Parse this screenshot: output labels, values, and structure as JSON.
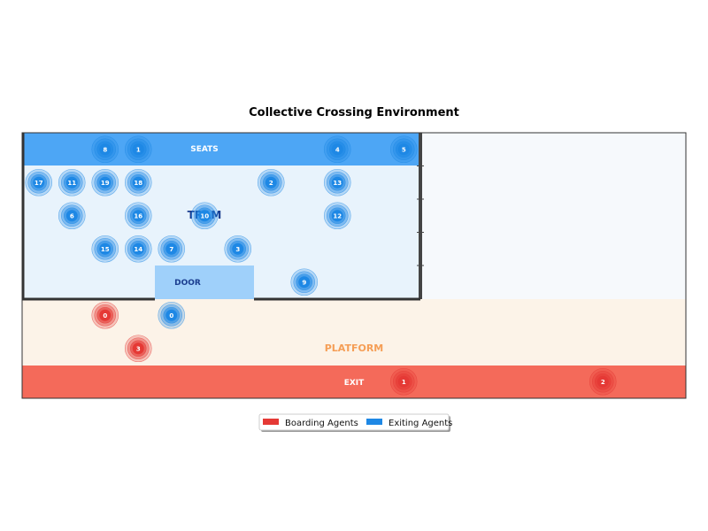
{
  "title": "Collective Crossing Environment",
  "zones": {
    "seats_label": "SEATS",
    "tram_label": "TRAM",
    "door_label": "DOOR",
    "platform_label": "PLATFORM",
    "exit_label": "EXIT"
  },
  "legend": {
    "boarding_label": "Boarding Agents",
    "exiting_label": "Exiting Agents"
  },
  "colors": {
    "seats": "#4da6f5",
    "tram": "#e8f3fc",
    "door": "#9fd0fa",
    "platform": "#fcf3e8",
    "exit": "#f46a5a",
    "outside": "#f6f9fc",
    "boarding": "#e53935",
    "exiting": "#1e88e5",
    "tram_text": "#1a3d8f",
    "platform_text": "#f59e56"
  },
  "grid": {
    "columns": 20,
    "rows": 8
  },
  "exiting_agents": [
    {
      "id": "8",
      "col": 2,
      "row": 0
    },
    {
      "id": "1",
      "col": 3,
      "row": 0
    },
    {
      "id": "4",
      "col": 9,
      "row": 0
    },
    {
      "id": "5",
      "col": 11,
      "row": 0
    },
    {
      "id": "17",
      "col": 0,
      "row": 1
    },
    {
      "id": "11",
      "col": 1,
      "row": 1
    },
    {
      "id": "19",
      "col": 2,
      "row": 1
    },
    {
      "id": "18",
      "col": 3,
      "row": 1
    },
    {
      "id": "2",
      "col": 7,
      "row": 1
    },
    {
      "id": "13",
      "col": 9,
      "row": 1
    },
    {
      "id": "6",
      "col": 1,
      "row": 2
    },
    {
      "id": "16",
      "col": 3,
      "row": 2
    },
    {
      "id": "10",
      "col": 5,
      "row": 2
    },
    {
      "id": "12",
      "col": 9,
      "row": 2
    },
    {
      "id": "15",
      "col": 2,
      "row": 3
    },
    {
      "id": "14",
      "col": 3,
      "row": 3
    },
    {
      "id": "7",
      "col": 4,
      "row": 3
    },
    {
      "id": "3",
      "col": 6,
      "row": 3
    },
    {
      "id": "9",
      "col": 8,
      "row": 4
    },
    {
      "id": "0",
      "col": 4,
      "row": 5
    }
  ],
  "boarding_agents": [
    {
      "id": "0",
      "col": 2,
      "row": 5
    },
    {
      "id": "3",
      "col": 3,
      "row": 6
    },
    {
      "id": "1",
      "col": 11,
      "row": 7
    },
    {
      "id": "2",
      "col": 17,
      "row": 7
    }
  ]
}
